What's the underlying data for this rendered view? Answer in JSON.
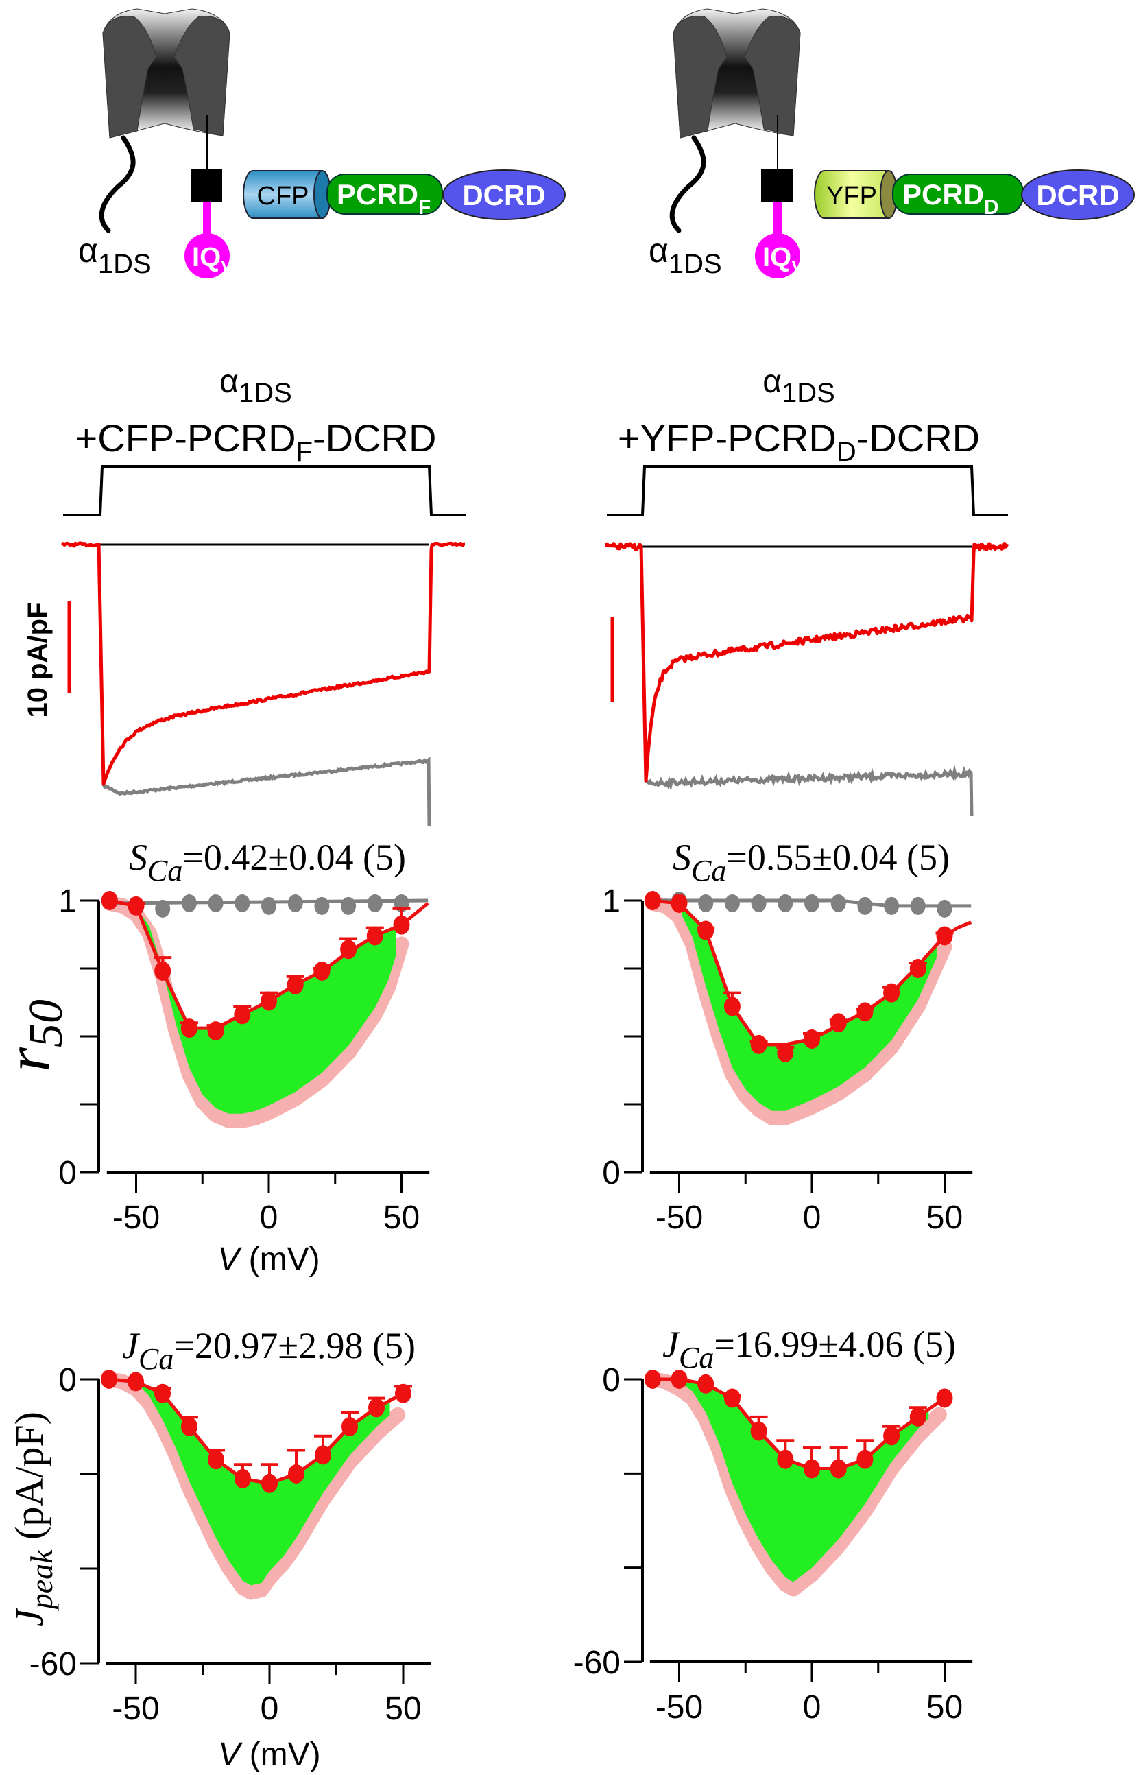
{
  "schematics": [
    {
      "channel_label": "α",
      "channel_sub": "1DS",
      "iq": "IQ",
      "iq_sub": "V",
      "fp": "FP_CFP",
      "fp_label": "CFP",
      "pcrd": "PCRD",
      "pcrd_sub": "F",
      "dcrd": "DCRD",
      "colors": {
        "fp_light": "#a9d4f0",
        "fp_dark": "#2f8fc4",
        "fp_end": "#1e7aa8",
        "pcrd": "#00a000",
        "dcrd": "#5555ee",
        "iq": "#ff00ff"
      }
    },
    {
      "channel_label": "α",
      "channel_sub": "1DS",
      "iq": "IQ",
      "iq_sub": "V",
      "fp": "FP_YFP",
      "fp_label": "YFP",
      "pcrd": "PCRD",
      "pcrd_sub": "D",
      "dcrd": "DCRD",
      "colors": {
        "fp_light": "#f4ffa0",
        "fp_dark": "#9ccc2a",
        "fp_end": "#8a8a40",
        "pcrd": "#00a000",
        "dcrd": "#5555ee",
        "iq": "#ff00ff"
      }
    }
  ],
  "traces": [
    {
      "title_alpha": "α",
      "title_alpha_sub": "1DS",
      "title_pre": "+CFP-PCRD",
      "title_sub": "F",
      "title_post": "-DCRD",
      "scale_bar_label": "10 pA/pF",
      "ca_color": "#ee0000",
      "ba_color": "#808080"
    },
    {
      "title_alpha": "α",
      "title_alpha_sub": "1DS",
      "title_pre": "+YFP-PCRD",
      "title_sub": "D",
      "title_post": "-DCRD",
      "ca_color": "#ee0000",
      "ba_color": "#808080"
    }
  ],
  "chart_data": [
    {
      "type": "line",
      "title_main": "S",
      "title_sub": "Ca",
      "title_value": "=0.42±0.04 (5)",
      "ylabel_main": "r",
      "ylabel_sub": "50",
      "xlabel_main": "V",
      "xlabel_unit": " (mV)",
      "xlim": [
        -60,
        60
      ],
      "ylim": [
        0,
        1
      ],
      "xtick_labels": [
        "-50",
        "0",
        "50"
      ],
      "xtick_values": [
        -50,
        0,
        50
      ],
      "ytick_labels": [
        "0",
        "1"
      ],
      "ytick_values": [
        0,
        1
      ],
      "x": [
        -60,
        -50,
        -40,
        -30,
        -20,
        -10,
        0,
        10,
        20,
        30,
        40,
        50
      ],
      "series": [
        {
          "color": "#ee1111",
          "values": [
            1.0,
            0.98,
            0.74,
            0.53,
            0.52,
            0.58,
            0.63,
            0.69,
            0.74,
            0.82,
            0.87,
            0.91
          ],
          "errors": [
            0,
            0.01,
            0.05,
            0.02,
            0.02,
            0.03,
            0.03,
            0.03,
            0.01,
            0.04,
            0.03,
            0.06
          ],
          "fit_x": [
            -60,
            -50,
            -40,
            -30,
            -20,
            -10,
            0,
            10,
            20,
            30,
            40,
            50,
            60
          ],
          "fit_values": [
            1.0,
            0.98,
            0.74,
            0.53,
            0.53,
            0.58,
            0.63,
            0.69,
            0.74,
            0.81,
            0.87,
            0.91,
            0.99
          ]
        },
        {
          "color": "#808080",
          "values": [
            1.0,
            0.98,
            0.97,
            0.99,
            0.99,
            0.99,
            0.98,
            0.99,
            0.98,
            0.98,
            0.99,
            0.99
          ],
          "fit_x": [
            -60,
            60
          ],
          "fit_values": [
            0.99,
            1.0
          ]
        },
        {
          "color": "#f7b0b0",
          "x": [
            -60,
            -55,
            -50,
            -45,
            -40,
            -35,
            -30,
            -25,
            -20,
            -15,
            -10,
            -5,
            0,
            10,
            20,
            30,
            40,
            45,
            50
          ],
          "values": [
            0.99,
            0.98,
            0.95,
            0.88,
            0.72,
            0.52,
            0.36,
            0.26,
            0.21,
            0.19,
            0.19,
            0.2,
            0.22,
            0.27,
            0.34,
            0.44,
            0.58,
            0.68,
            0.84
          ]
        }
      ],
      "fill_color": "#22ee22"
    },
    {
      "type": "line",
      "title_main": "S",
      "title_sub": "Ca",
      "title_value": "=0.55±0.04 (5)",
      "xlim": [
        -60,
        60
      ],
      "ylim": [
        0,
        1
      ],
      "xtick_labels": [
        "-50",
        "0",
        "50"
      ],
      "xtick_values": [
        -50,
        0,
        50
      ],
      "ytick_labels": [
        "0",
        "1"
      ],
      "ytick_values": [
        0,
        1
      ],
      "x": [
        -60,
        -50,
        -40,
        -30,
        -20,
        -10,
        0,
        10,
        20,
        30,
        40,
        50
      ],
      "series": [
        {
          "color": "#ee1111",
          "values": [
            1.0,
            0.99,
            0.89,
            0.61,
            0.47,
            0.44,
            0.49,
            0.55,
            0.59,
            0.66,
            0.75,
            0.87
          ],
          "errors": [
            0,
            0,
            0.01,
            0.05,
            0.01,
            0.02,
            0.02,
            0.01,
            0.01,
            0.02,
            0.02,
            0.01
          ],
          "fit_x": [
            -60,
            -50,
            -40,
            -30,
            -20,
            -10,
            0,
            10,
            20,
            30,
            40,
            50,
            55,
            60
          ],
          "fit_values": [
            1.0,
            0.99,
            0.89,
            0.61,
            0.47,
            0.47,
            0.49,
            0.54,
            0.59,
            0.66,
            0.76,
            0.87,
            0.9,
            0.92
          ]
        },
        {
          "color": "#808080",
          "values": [
            1.0,
            1.0,
            0.99,
            0.99,
            0.99,
            0.99,
            0.99,
            0.99,
            0.98,
            0.98,
            0.98,
            0.97
          ],
          "fit_x": [
            -60,
            10,
            30,
            60
          ],
          "fit_values": [
            1.0,
            1.0,
            0.98,
            0.98
          ]
        },
        {
          "color": "#f7b0b0",
          "x": [
            -60,
            -55,
            -50,
            -45,
            -40,
            -35,
            -30,
            -25,
            -20,
            -15,
            -10,
            0,
            10,
            20,
            30,
            40,
            45,
            50
          ],
          "values": [
            0.99,
            0.98,
            0.94,
            0.84,
            0.66,
            0.5,
            0.36,
            0.28,
            0.23,
            0.2,
            0.2,
            0.24,
            0.29,
            0.36,
            0.46,
            0.61,
            0.72,
            0.83
          ]
        }
      ],
      "fill_color": "#22ee22"
    },
    {
      "type": "line",
      "title_main": "J",
      "title_sub": "Ca",
      "title_value": "=20.97±2.98 (5)",
      "ylabel_main": "J",
      "ylabel_sub": "peak",
      "ylabel_unit": " (pA/pF)",
      "xlabel_main": "V",
      "xlabel_unit": " (mV)",
      "xlim": [
        -60,
        60
      ],
      "ylim": [
        -60,
        0
      ],
      "xtick_labels": [
        "-50",
        "0",
        "50"
      ],
      "xtick_values": [
        -50,
        0,
        50
      ],
      "ytick_labels": [
        "-60",
        "0"
      ],
      "ytick_values": [
        -60,
        0
      ],
      "x": [
        -60,
        -50,
        -40,
        -30,
        -20,
        -10,
        0,
        10,
        20,
        30,
        40,
        50
      ],
      "series": [
        {
          "color": "#ee1111",
          "values": [
            0,
            -0.5,
            -3,
            -10,
            -17,
            -21,
            -22,
            -20,
            -16,
            -10,
            -6,
            -3
          ],
          "errors": [
            0,
            0,
            1,
            2,
            2,
            3,
            4,
            5,
            4,
            3,
            2,
            1.5
          ]
        },
        {
          "color": "#f7b0b0",
          "x": [
            -60,
            -55,
            -50,
            -45,
            -40,
            -35,
            -30,
            -25,
            -20,
            -15,
            -10,
            -7,
            -3,
            0,
            5,
            10,
            20,
            30,
            40,
            48
          ],
          "values": [
            0,
            -0.5,
            -2,
            -5,
            -10,
            -16,
            -23,
            -29,
            -35,
            -40,
            -44,
            -45,
            -44.5,
            -42,
            -39,
            -35,
            -25.5,
            -17.5,
            -11.5,
            -7.5
          ]
        }
      ],
      "fill_color": "#22ee22"
    },
    {
      "type": "line",
      "title_main": "J",
      "title_sub": "Ca",
      "title_value": "=16.99±4.06 (5)",
      "xlim": [
        -60,
        60
      ],
      "ylim": [
        -60,
        0
      ],
      "xtick_labels": [
        "-50",
        "0",
        "50"
      ],
      "xtick_values": [
        -50,
        0,
        50
      ],
      "ytick_labels": [
        "-60",
        "0"
      ],
      "ytick_values": [
        -60,
        0
      ],
      "x": [
        -60,
        -50,
        -40,
        -30,
        -20,
        -10,
        0,
        10,
        20,
        30,
        40,
        50
      ],
      "series": [
        {
          "color": "#ee1111",
          "values": [
            0,
            0,
            -1,
            -4,
            -11,
            -17,
            -19,
            -19,
            -17,
            -12,
            -8,
            -4
          ],
          "errors": [
            0,
            0,
            0,
            0.5,
            3,
            4,
            4.5,
            4.5,
            4,
            2,
            2,
            0
          ]
        },
        {
          "color": "#f7b0b0",
          "x": [
            -60,
            -55,
            -50,
            -45,
            -40,
            -35,
            -30,
            -25,
            -20,
            -15,
            -10,
            -7,
            0,
            10,
            20,
            30,
            40,
            48
          ],
          "values": [
            0,
            -0.5,
            -2,
            -4,
            -8.5,
            -15,
            -23.5,
            -30,
            -35.5,
            -40,
            -43.5,
            -44.5,
            -41.5,
            -35.5,
            -28,
            -19,
            -12,
            -7.5
          ]
        }
      ],
      "fill_color": "#22ee22"
    }
  ]
}
